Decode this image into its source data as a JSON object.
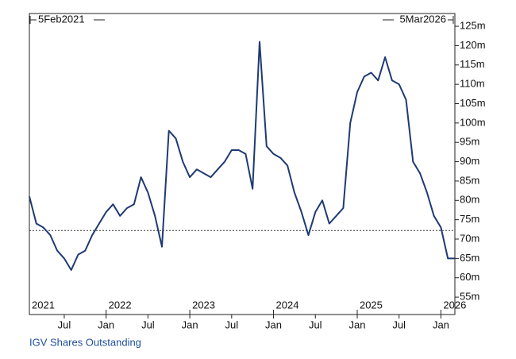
{
  "chart_data": {
    "type": "line",
    "start_label": "5Feb2021",
    "end_label": "5Mar2026",
    "footer": "IGV Shares Outstanding",
    "x": [
      "2021-02",
      "2021-03",
      "2021-04",
      "2021-05",
      "2021-06",
      "2021-07",
      "2021-08",
      "2021-09",
      "2021-10",
      "2021-11",
      "2021-12",
      "2022-01",
      "2022-02",
      "2022-03",
      "2022-04",
      "2022-05",
      "2022-06",
      "2022-07",
      "2022-08",
      "2022-09",
      "2022-10",
      "2022-11",
      "2022-12",
      "2023-01",
      "2023-02",
      "2023-03",
      "2023-04",
      "2023-05",
      "2023-06",
      "2023-07",
      "2023-08",
      "2023-09",
      "2023-10",
      "2023-11",
      "2023-12",
      "2024-01",
      "2024-02",
      "2024-03",
      "2024-04",
      "2024-05",
      "2024-06",
      "2024-07",
      "2024-08",
      "2024-09",
      "2024-10",
      "2024-11",
      "2024-12",
      "2025-01",
      "2025-02",
      "2025-03",
      "2025-04",
      "2025-05",
      "2025-06",
      "2025-07",
      "2025-08",
      "2025-09",
      "2025-10",
      "2025-11",
      "2025-12",
      "2026-01",
      "2026-02",
      "2026-03"
    ],
    "series": [
      {
        "name": "IGV Shares Outstanding",
        "color": "#1f3a73",
        "values": [
          81,
          74,
          73,
          71,
          67,
          65,
          62,
          66,
          67,
          71,
          74,
          77,
          79,
          76,
          78,
          79,
          86,
          82,
          76,
          68,
          98,
          96,
          90,
          86,
          88,
          87,
          86,
          88,
          90,
          93,
          93,
          92,
          83,
          121,
          94,
          92,
          91,
          89,
          82,
          77,
          71,
          77,
          80,
          74,
          76,
          78,
          100,
          108,
          112,
          113,
          111,
          117,
          111,
          110,
          106,
          90,
          87,
          82,
          76,
          73,
          65,
          65
        ]
      }
    ],
    "reference_line": 72.2,
    "xlim": [
      "2021-02",
      "2026-03"
    ],
    "xticks": [
      {
        "value": "2021-07",
        "label": "Jul"
      },
      {
        "value": "2022-01",
        "label": "Jan"
      },
      {
        "value": "2022-07",
        "label": "Jul"
      },
      {
        "value": "2023-01",
        "label": "Jan"
      },
      {
        "value": "2023-07",
        "label": "Jul"
      },
      {
        "value": "2024-01",
        "label": "Jan"
      },
      {
        "value": "2024-07",
        "label": "Jul"
      },
      {
        "value": "2025-01",
        "label": "Jan"
      },
      {
        "value": "2025-07",
        "label": "Jul"
      },
      {
        "value": "2026-01",
        "label": "Jan"
      }
    ],
    "year_labels": [
      {
        "value": "2021-02",
        "label": "2021"
      },
      {
        "value": "2022-01",
        "label": "2022"
      },
      {
        "value": "2023-01",
        "label": "2023"
      },
      {
        "value": "2024-01",
        "label": "2024"
      },
      {
        "value": "2025-01",
        "label": "2025"
      },
      {
        "value": "2026-01",
        "label": "2026"
      }
    ],
    "ylim": [
      50.5,
      128.3
    ],
    "yticks": [
      {
        "value": 55,
        "label": "55m"
      },
      {
        "value": 60,
        "label": "60m"
      },
      {
        "value": 65,
        "label": "65m"
      },
      {
        "value": 70,
        "label": "70m"
      },
      {
        "value": 75,
        "label": "75m"
      },
      {
        "value": 80,
        "label": "80m"
      },
      {
        "value": 85,
        "label": "85m"
      },
      {
        "value": 90,
        "label": "90m"
      },
      {
        "value": 95,
        "label": "95m"
      },
      {
        "value": 100,
        "label": "100m"
      },
      {
        "value": 105,
        "label": "105m"
      },
      {
        "value": 110,
        "label": "110m"
      },
      {
        "value": 115,
        "label": "115m"
      },
      {
        "value": 120,
        "label": "120m"
      },
      {
        "value": 125,
        "label": "125m"
      }
    ]
  }
}
